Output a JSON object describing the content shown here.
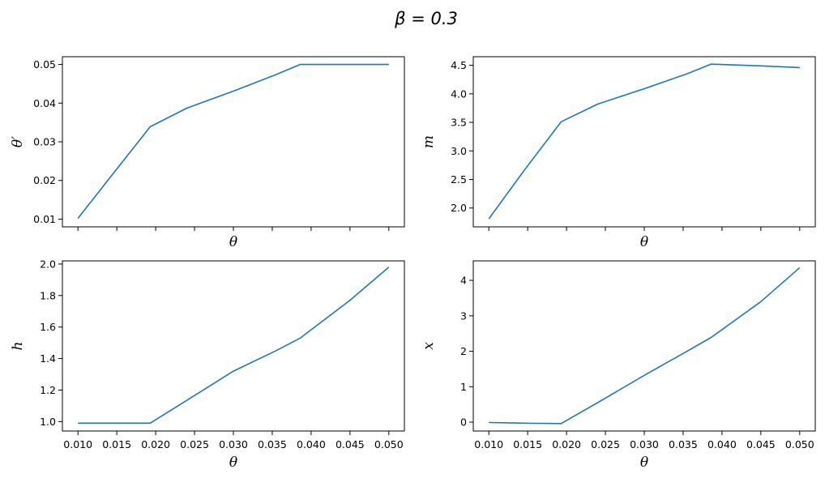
{
  "figure": {
    "suptitle": "β = 0.3"
  },
  "chart_data": [
    {
      "type": "line",
      "xlabel": "θ",
      "ylabel": "θ′",
      "xlim": [
        0.008,
        0.052
      ],
      "ylim": [
        0.008,
        0.052
      ],
      "xticks": [
        0.01,
        0.015,
        0.02,
        0.025,
        0.03,
        0.035,
        0.04,
        0.045,
        0.05
      ],
      "show_xtick_labels": false,
      "yticks": [
        0.01,
        0.02,
        0.03,
        0.04,
        0.05
      ],
      "ytick_labels": [
        "0.01",
        "0.02",
        "0.03",
        "0.04",
        "0.05"
      ],
      "grid": false,
      "series": [
        {
          "color": "#1f77b4",
          "x": [
            0.01,
            0.0145,
            0.0193,
            0.024,
            0.03,
            0.0355,
            0.0386,
            0.045,
            0.05
          ],
          "y": [
            0.0102,
            0.0217,
            0.0339,
            0.0387,
            0.0431,
            0.0474,
            0.05,
            0.05,
            0.05
          ]
        }
      ]
    },
    {
      "type": "line",
      "xlabel": "θ",
      "ylabel": "m",
      "xlim": [
        0.008,
        0.052
      ],
      "ylim": [
        1.67,
        4.65
      ],
      "xticks": [
        0.01,
        0.015,
        0.02,
        0.025,
        0.03,
        0.035,
        0.04,
        0.045,
        0.05
      ],
      "show_xtick_labels": false,
      "yticks": [
        2.0,
        2.5,
        3.0,
        3.5,
        4.0,
        4.5
      ],
      "ytick_labels": [
        "2.0",
        "2.5",
        "3.0",
        "3.5",
        "4.0",
        "4.5"
      ],
      "grid": false,
      "series": [
        {
          "color": "#1f77b4",
          "x": [
            0.01,
            0.0145,
            0.0193,
            0.024,
            0.03,
            0.0355,
            0.0386,
            0.045,
            0.05
          ],
          "y": [
            1.81,
            2.65,
            3.51,
            3.82,
            4.09,
            4.35,
            4.52,
            4.49,
            4.46
          ]
        }
      ]
    },
    {
      "type": "line",
      "xlabel": "θ",
      "ylabel": "h",
      "xlim": [
        0.008,
        0.052
      ],
      "ylim": [
        0.94,
        2.02
      ],
      "xticks": [
        0.01,
        0.015,
        0.02,
        0.025,
        0.03,
        0.035,
        0.04,
        0.045,
        0.05
      ],
      "xtick_labels": [
        "0.010",
        "0.015",
        "0.020",
        "0.025",
        "0.030",
        "0.035",
        "0.040",
        "0.045",
        "0.050"
      ],
      "show_xtick_labels": true,
      "yticks": [
        1.0,
        1.2,
        1.4,
        1.6,
        1.8,
        2.0
      ],
      "ytick_labels": [
        "1.0",
        "1.2",
        "1.4",
        "1.6",
        "1.8",
        "2.0"
      ],
      "grid": false,
      "series": [
        {
          "color": "#1f77b4",
          "x": [
            0.01,
            0.015,
            0.0193,
            0.0245,
            0.03,
            0.0355,
            0.0386,
            0.045,
            0.05
          ],
          "y": [
            0.99,
            0.99,
            0.99,
            1.15,
            1.32,
            1.45,
            1.53,
            1.77,
            1.98
          ]
        }
      ]
    },
    {
      "type": "line",
      "xlabel": "θ",
      "ylabel": "x",
      "xlim": [
        0.008,
        0.052
      ],
      "ylim": [
        -0.25,
        4.55
      ],
      "xticks": [
        0.01,
        0.015,
        0.02,
        0.025,
        0.03,
        0.035,
        0.04,
        0.045,
        0.05
      ],
      "xtick_labels": [
        "0.010",
        "0.015",
        "0.020",
        "0.025",
        "0.030",
        "0.035",
        "0.040",
        "0.045",
        "0.050"
      ],
      "show_xtick_labels": true,
      "yticks": [
        0,
        1,
        2,
        3,
        4
      ],
      "ytick_labels": [
        "0",
        "1",
        "2",
        "3",
        "4"
      ],
      "grid": false,
      "series": [
        {
          "color": "#1f77b4",
          "x": [
            0.01,
            0.015,
            0.0193,
            0.024,
            0.03,
            0.0355,
            0.0386,
            0.045,
            0.05
          ],
          "y": [
            -0.01,
            -0.03,
            -0.04,
            0.55,
            1.32,
            2.0,
            2.39,
            3.4,
            4.36
          ]
        }
      ]
    }
  ]
}
